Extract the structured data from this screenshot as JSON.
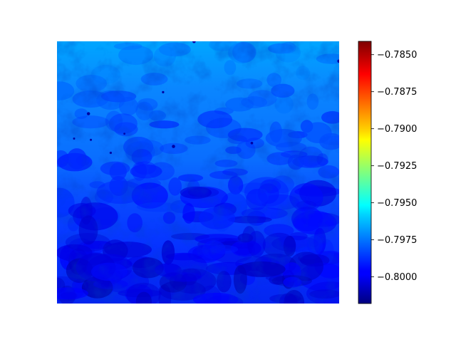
{
  "chart_data": {
    "type": "heatmap",
    "title": "",
    "xlabel": "",
    "ylabel": "",
    "axes_visible": false,
    "colormap": "jet",
    "value_range": [
      -0.8018,
      -0.7841
    ],
    "colorbar": {
      "position": "right",
      "ticks": [
        {
          "value": -0.785,
          "label": "−0.7850"
        },
        {
          "value": -0.7875,
          "label": "−0.7875"
        },
        {
          "value": -0.79,
          "label": "−0.7900"
        },
        {
          "value": -0.7925,
          "label": "−0.7925"
        },
        {
          "value": -0.795,
          "label": "−0.7950"
        },
        {
          "value": -0.7975,
          "label": "−0.7975"
        },
        {
          "value": -0.8,
          "label": "−0.8000"
        }
      ]
    },
    "field_summary": {
      "rows_top_to_bottom": [
        -0.7975,
        -0.798,
        -0.7985,
        -0.799,
        -0.7995,
        -0.7999,
        -0.8003
      ],
      "note_values": "Mean value per horizontal band, top to bottom; darker patches near bottom reach about -0.8012."
    }
  }
}
